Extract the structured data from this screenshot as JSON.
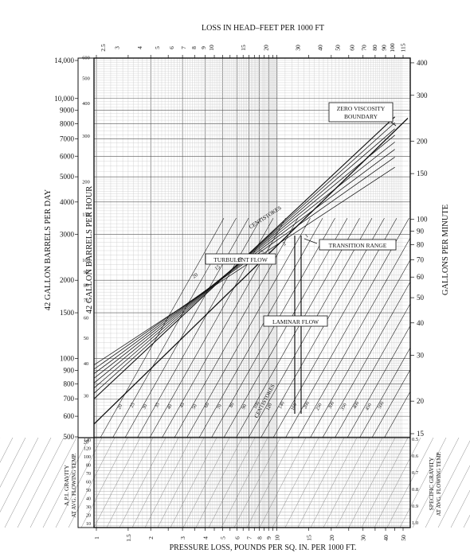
{
  "chart_data": {
    "type": "line",
    "title": "LOSS IN HEAD–FEET PER 1000 FT",
    "xlabel": "PRESSURE LOSS, POUNDS PER SQ. IN. PER 1000 FT.",
    "x_scale": "log",
    "y_scale": "log",
    "grid": true,
    "x_ticks_bottom": [
      "1",
      "1.5",
      "2",
      "3",
      "4",
      "5",
      "6",
      "7",
      "8",
      "9",
      "10",
      "15",
      "20",
      "30",
      "40",
      "50"
    ],
    "x_ticks_top": [
      "2.5",
      "3",
      "4",
      "5",
      "6",
      "7",
      "8",
      "9",
      "10",
      "15",
      "20",
      "30",
      "40",
      "50",
      "60",
      "70",
      "80",
      "90",
      "100",
      "115"
    ],
    "left_axis_1": {
      "label": "42 GALLON BARRELS PER DAY",
      "ticks": [
        "14,000",
        "10,000",
        "9000",
        "8000",
        "7000",
        "6000",
        "5000",
        "4000",
        "3000",
        "2000",
        "1500",
        "1000",
        "900",
        "800",
        "700",
        "600",
        "500"
      ]
    },
    "left_axis_2": {
      "label": "42 GALLON BARRELS PER HOUR",
      "ticks": [
        "600",
        "500",
        "400",
        "300",
        "200",
        "150",
        "100",
        "90",
        "80",
        "70",
        "60",
        "50",
        "40",
        "30",
        "20"
      ]
    },
    "right_axis": {
      "label": "GALLONS PER MINUTE",
      "ticks": [
        "400",
        "300",
        "200",
        "150",
        "100",
        "90",
        "80",
        "70",
        "60",
        "50",
        "40",
        "30",
        "20",
        "15"
      ]
    },
    "bottom_left_axis": {
      "label_line1": "A.P.I. GRAVITY",
      "label_line2": "AT AVG. FLOWING TEMP.",
      "ticks": [
        "140",
        "120",
        "100",
        "80",
        "70",
        "60",
        "50",
        "40",
        "30",
        "20",
        "10"
      ]
    },
    "bottom_right_axis": {
      "label_line1": "SPECIFIC GRAVITY",
      "label_line2": "AT AVG. FLOWING TEMP.",
      "ticks": [
        "0.5",
        "0.6",
        "0.7",
        "0.8",
        "0.9",
        "1.0"
      ]
    },
    "annotations": {
      "zero_viscosity_line1": "ZERO VISCOSITY",
      "zero_viscosity_line2": "BOUNDARY",
      "transition_range": "TRANSITION RANGE",
      "turbulent_flow": "TURBULENT FLOW",
      "laminar_flow": "LAMINAR FLOW",
      "centistokes": "CENTISTOKES"
    },
    "turbulent_viscosity_labels": [
      "20",
      "15",
      "10",
      "5",
      "2",
      "1"
    ],
    "laminar_viscosity_labels": [
      "20",
      "25",
      "30",
      "35",
      "40",
      "45",
      "50",
      "60",
      "70",
      "80",
      "90",
      "100",
      "120",
      "140",
      "160",
      "200",
      "250",
      "300",
      "350",
      "400",
      "450",
      "500"
    ]
  }
}
